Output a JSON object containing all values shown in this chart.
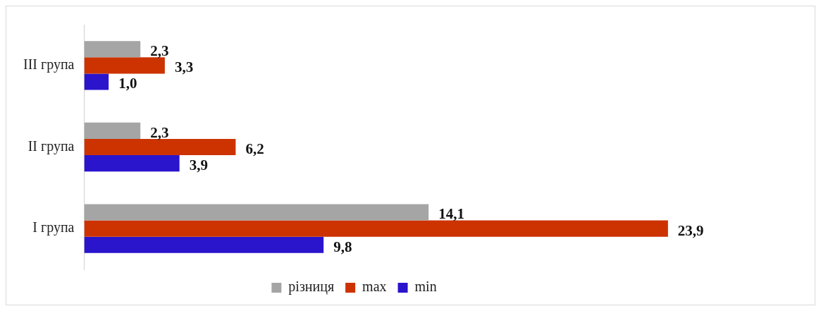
{
  "chart_data": {
    "type": "bar",
    "orientation": "horizontal",
    "categories": [
      "III група",
      "II група",
      "I група"
    ],
    "series": [
      {
        "name": "різниця",
        "color": "#a5a5a5",
        "values": [
          2.3,
          2.3,
          14.1
        ],
        "value_labels": [
          "2,3",
          "2,3",
          "14,1"
        ]
      },
      {
        "name": "max",
        "color": "#cc3300",
        "values": [
          3.3,
          6.2,
          23.9
        ],
        "value_labels": [
          "3,3",
          "6,2",
          "23,9"
        ]
      },
      {
        "name": "min",
        "color": "#2a14cc",
        "values": [
          1.0,
          3.9,
          9.8
        ],
        "value_labels": [
          "1,0",
          "3,9",
          "9,8"
        ]
      }
    ],
    "tick_labels": "y",
    "grid": false,
    "legend": "bottom"
  }
}
